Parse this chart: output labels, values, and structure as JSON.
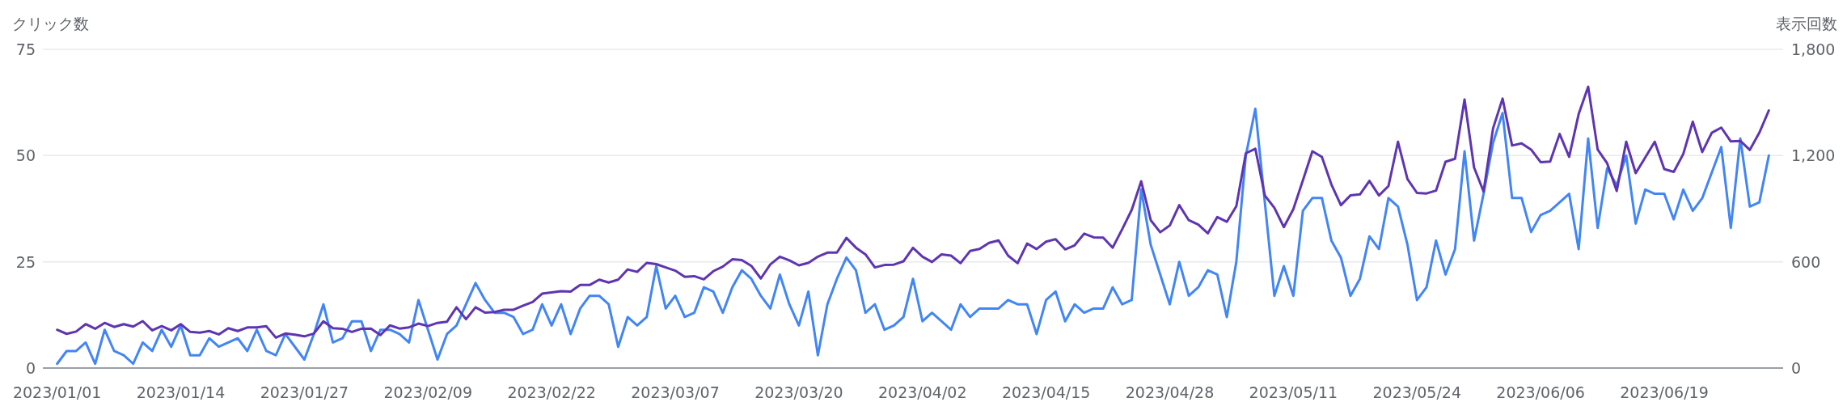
{
  "chart_data": {
    "type": "line",
    "ylabel": "クリック数",
    "y2label": "表示回数",
    "x": [
      "2023-01-01",
      "2023-01-02",
      "2023-01-03",
      "2023-01-04",
      "2023-01-05",
      "2023-01-06",
      "2023-01-07",
      "2023-01-08",
      "2023-01-09",
      "2023-01-10",
      "2023-01-11",
      "2023-01-12",
      "2023-01-13",
      "2023-01-14",
      "2023-01-15",
      "2023-01-16",
      "2023-01-17",
      "2023-01-18",
      "2023-01-19",
      "2023-01-20",
      "2023-01-21",
      "2023-01-22",
      "2023-01-23",
      "2023-01-24",
      "2023-01-25",
      "2023-01-26",
      "2023-01-27",
      "2023-01-28",
      "2023-01-29",
      "2023-01-30",
      "2023-01-31",
      "2023-02-01",
      "2023-02-02",
      "2023-02-03",
      "2023-02-04",
      "2023-02-05",
      "2023-02-06",
      "2023-02-07",
      "2023-02-08",
      "2023-02-09",
      "2023-02-10",
      "2023-02-11",
      "2023-02-12",
      "2023-02-13",
      "2023-02-14",
      "2023-02-15",
      "2023-02-16",
      "2023-02-17",
      "2023-02-18",
      "2023-02-19",
      "2023-02-20",
      "2023-02-21",
      "2023-02-22",
      "2023-02-23",
      "2023-02-24",
      "2023-02-25",
      "2023-02-26",
      "2023-02-27",
      "2023-02-28",
      "2023-03-01",
      "2023-03-02",
      "2023-03-03",
      "2023-03-04",
      "2023-03-05",
      "2023-03-06",
      "2023-03-07",
      "2023-03-08",
      "2023-03-09",
      "2023-03-10",
      "2023-03-11",
      "2023-03-12",
      "2023-03-13",
      "2023-03-14",
      "2023-03-15",
      "2023-03-16",
      "2023-03-17",
      "2023-03-18",
      "2023-03-19",
      "2023-03-20",
      "2023-03-21",
      "2023-03-22",
      "2023-03-23",
      "2023-03-24",
      "2023-03-25",
      "2023-03-26",
      "2023-03-27",
      "2023-03-28",
      "2023-03-29",
      "2023-03-30",
      "2023-03-31",
      "2023-04-01",
      "2023-04-02",
      "2023-04-03",
      "2023-04-04",
      "2023-04-05",
      "2023-04-06",
      "2023-04-07",
      "2023-04-08",
      "2023-04-09",
      "2023-04-10",
      "2023-04-11",
      "2023-04-12",
      "2023-04-13",
      "2023-04-14",
      "2023-04-15",
      "2023-04-16",
      "2023-04-17",
      "2023-04-18",
      "2023-04-19",
      "2023-04-20",
      "2023-04-21",
      "2023-04-22",
      "2023-04-23",
      "2023-04-24",
      "2023-04-25",
      "2023-04-26",
      "2023-04-27",
      "2023-04-28",
      "2023-04-29",
      "2023-04-30",
      "2023-05-01",
      "2023-05-02",
      "2023-05-03",
      "2023-05-04",
      "2023-05-05",
      "2023-05-06",
      "2023-05-07",
      "2023-05-08",
      "2023-05-09",
      "2023-05-10",
      "2023-05-11",
      "2023-05-12",
      "2023-05-13",
      "2023-05-14",
      "2023-05-15",
      "2023-05-16",
      "2023-05-17",
      "2023-05-18",
      "2023-05-19",
      "2023-05-20",
      "2023-05-21",
      "2023-05-22",
      "2023-05-23",
      "2023-05-24",
      "2023-05-25",
      "2023-05-26",
      "2023-05-27",
      "2023-05-28",
      "2023-05-29",
      "2023-05-30",
      "2023-05-31",
      "2023-06-01",
      "2023-06-02",
      "2023-06-03",
      "2023-06-04",
      "2023-06-05",
      "2023-06-06",
      "2023-06-07",
      "2023-06-08",
      "2023-06-09",
      "2023-06-10",
      "2023-06-11",
      "2023-06-12",
      "2023-06-13",
      "2023-06-14",
      "2023-06-15",
      "2023-06-16",
      "2023-06-17",
      "2023-06-18",
      "2023-06-19",
      "2023-06-20",
      "2023-06-21",
      "2023-06-22",
      "2023-06-23",
      "2023-06-24",
      "2023-06-25",
      "2023-06-26",
      "2023-06-27",
      "2023-06-28",
      "2023-06-29",
      "2023-06-30"
    ],
    "series": [
      {
        "color": "#4285f4",
        "values": [
          1,
          4,
          4,
          6,
          1,
          9,
          4,
          3,
          1,
          6,
          4,
          9,
          5,
          10,
          3,
          3,
          7,
          5,
          6,
          7,
          4,
          9,
          4,
          3,
          8,
          5,
          2,
          8,
          15,
          6,
          7,
          11,
          11,
          4,
          9,
          9,
          8,
          6,
          16,
          9,
          2,
          8,
          10,
          15,
          20,
          16,
          13,
          13,
          12,
          8,
          9,
          15,
          10,
          15,
          8,
          14,
          17,
          17,
          15,
          5,
          12,
          10,
          12,
          24,
          14,
          17,
          12,
          13,
          19,
          18,
          13,
          19,
          23,
          21,
          17,
          14,
          22,
          15,
          10,
          18,
          3,
          15,
          21,
          26,
          23,
          13,
          15,
          9,
          10,
          12,
          21,
          11,
          13,
          11,
          9,
          15,
          12,
          14,
          14,
          14,
          16,
          15,
          15,
          8,
          16,
          18,
          11,
          15,
          13,
          14,
          14,
          19,
          15,
          16,
          42,
          29,
          22,
          15,
          25,
          17,
          19,
          23,
          22,
          12,
          25,
          50,
          61,
          39,
          17,
          24,
          17,
          37,
          40,
          40,
          30,
          26,
          17,
          21,
          31,
          28,
          40,
          38,
          29,
          16,
          19,
          30,
          22,
          28,
          51,
          30,
          41,
          53,
          60,
          40,
          40,
          32,
          36,
          37,
          39,
          41,
          28,
          54,
          33,
          47,
          43,
          50,
          34,
          42,
          41,
          41,
          35,
          42,
          37,
          40,
          46,
          52,
          33,
          54,
          38,
          39,
          50
        ]
      },
      {
        "color": "#5e35b1",
        "axis": "y2",
        "values": [
          216,
          193,
          206,
          248,
          222,
          255,
          232,
          248,
          234,
          265,
          213,
          237,
          213,
          248,
          204,
          200,
          209,
          190,
          225,
          209,
          229,
          230,
          236,
          172,
          195,
          188,
          179,
          195,
          264,
          225,
          222,
          204,
          222,
          223,
          186,
          241,
          223,
          230,
          251,
          237,
          255,
          262,
          343,
          276,
          343,
          313,
          316,
          329,
          329,
          352,
          373,
          420,
          427,
          434,
          432,
          469,
          469,
          499,
          483,
          499,
          557,
          543,
          594,
          587,
          568,
          550,
          515,
          519,
          501,
          547,
          573,
          614,
          610,
          577,
          506,
          585,
          629,
          608,
          580,
          594,
          629,
          652,
          652,
          735,
          680,
          642,
          568,
          582,
          584,
          603,
          679,
          629,
          599,
          642,
          635,
          592,
          661,
          673,
          707,
          721,
          635,
          592,
          703,
          672,
          714,
          728,
          670,
          693,
          759,
          738,
          737,
          680,
          784,
          893,
          1055,
          835,
          767,
          805,
          920,
          835,
          810,
          761,
          853,
          826,
          914,
          1213,
          1239,
          975,
          905,
          796,
          898,
          1060,
          1224,
          1192,
          1037,
          920,
          975,
          981,
          1057,
          975,
          1028,
          1278,
          1067,
          989,
          986,
          1002,
          1165,
          1182,
          1517,
          1133,
          997,
          1354,
          1522,
          1257,
          1269,
          1234,
          1163,
          1166,
          1322,
          1193,
          1434,
          1589,
          1234,
          1156,
          1000,
          1278,
          1101,
          1189,
          1278,
          1124,
          1108,
          1209,
          1391,
          1220,
          1329,
          1358,
          1280,
          1283,
          1232,
          1329,
          1455
        ]
      }
    ],
    "xlim": [
      "2022-12-30T12:00",
      "2023-07-01T12:00"
    ],
    "xticks": [
      {
        "value": "2023-01-01",
        "label": "2023/01/01"
      },
      {
        "value": "2023-01-14",
        "label": "2023/01/14"
      },
      {
        "value": "2023-01-27",
        "label": "2023/01/27"
      },
      {
        "value": "2023-02-09",
        "label": "2023/02/09"
      },
      {
        "value": "2023-02-22",
        "label": "2023/02/22"
      },
      {
        "value": "2023-03-07",
        "label": "2023/03/07"
      },
      {
        "value": "2023-03-20",
        "label": "2023/03/20"
      },
      {
        "value": "2023-04-02",
        "label": "2023/04/02"
      },
      {
        "value": "2023-04-15",
        "label": "2023/04/15"
      },
      {
        "value": "2023-04-28",
        "label": "2023/04/28"
      },
      {
        "value": "2023-05-11",
        "label": "2023/05/11"
      },
      {
        "value": "2023-05-24",
        "label": "2023/05/24"
      },
      {
        "value": "2023-06-06",
        "label": "2023/06/06"
      },
      {
        "value": "2023-06-19",
        "label": "2023/06/19"
      }
    ],
    "ylim": [
      0,
      75
    ],
    "yticks": [
      0,
      25,
      50,
      75
    ],
    "y2lim": [
      0,
      1800
    ],
    "y2ticks": [
      0,
      {
        "value": 600,
        "label": "600"
      },
      {
        "value": 1200,
        "label": "1,200"
      },
      {
        "value": 1800,
        "label": "1,800"
      }
    ],
    "grid": "y",
    "marker": "none",
    "line_style": "solid"
  }
}
